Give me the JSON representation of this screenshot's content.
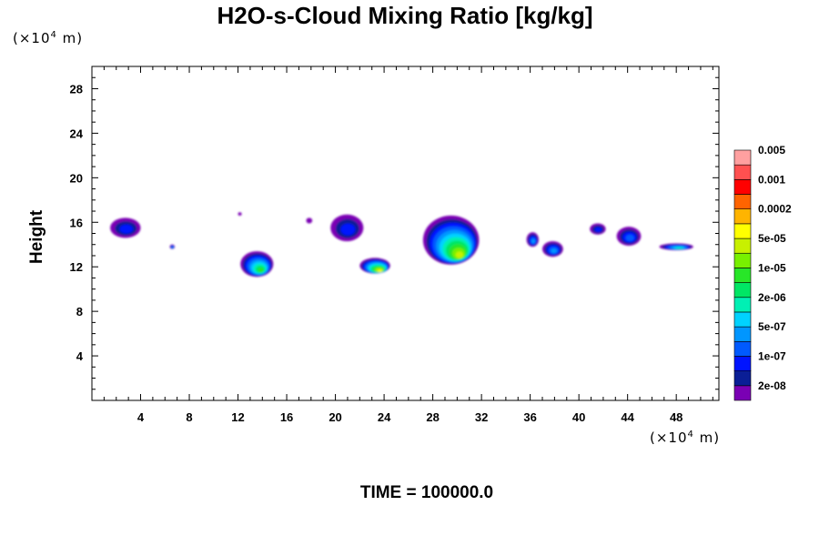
{
  "chart_data": {
    "type": "heatmap",
    "title": "H2O-s-Cloud Mixing Ratio [kg/kg]",
    "ylabel": "Height",
    "x_unit": {
      "prefix": "(×10",
      "exp": "4",
      "suffix": " m)"
    },
    "y_unit": {
      "prefix": "(×10",
      "exp": "4",
      "suffix": " m)"
    },
    "xlim": [
      0,
      51.5
    ],
    "ylim": [
      0,
      30
    ],
    "x_ticks": [
      4,
      8,
      12,
      16,
      20,
      24,
      28,
      32,
      36,
      40,
      44,
      48
    ],
    "y_ticks": [
      4,
      8,
      12,
      16,
      20,
      24,
      28
    ],
    "footer": "TIME = 100000.0",
    "colorbar": {
      "colors": [
        "#7a00b4",
        "#0a1e96",
        "#0014ff",
        "#005aff",
        "#0096ff",
        "#00d2ff",
        "#00f0b4",
        "#00e664",
        "#28e628",
        "#78f000",
        "#c8f000",
        "#ffff00",
        "#ffb400",
        "#ff6400",
        "#ff0000",
        "#ff5050",
        "#ffa0a0"
      ],
      "labels": [
        "2e-08",
        "1e-07",
        "5e-07",
        "2e-06",
        "1e-05",
        "5e-05",
        "0.0002",
        "0.001",
        "0.005"
      ]
    },
    "features": [
      {
        "x": [
          1.5,
          4.0
        ],
        "y": [
          14.6,
          16.4
        ],
        "max_level": 2
      },
      {
        "x": [
          6.4,
          6.8
        ],
        "y": [
          13.6,
          14.0
        ],
        "max_level": 4
      },
      {
        "x": [
          12.0,
          12.3
        ],
        "y": [
          16.6,
          16.9
        ],
        "max_level": 0
      },
      {
        "x": [
          12.2,
          14.9
        ],
        "y": [
          11.1,
          13.4
        ],
        "max_level": 8
      },
      {
        "x": [
          17.6,
          18.1
        ],
        "y": [
          15.9,
          16.4
        ],
        "max_level": 0
      },
      {
        "x": [
          19.6,
          22.3
        ],
        "y": [
          14.3,
          16.7
        ],
        "max_level": 2
      },
      {
        "x": [
          22.0,
          24.5
        ],
        "y": [
          11.4,
          12.8
        ],
        "max_level": 11
      },
      {
        "x": [
          27.2,
          31.8
        ],
        "y": [
          12.2,
          16.6
        ],
        "max_level": 10
      },
      {
        "x": [
          35.7,
          36.7
        ],
        "y": [
          13.8,
          15.1
        ],
        "max_level": 4
      },
      {
        "x": [
          37.0,
          38.7
        ],
        "y": [
          12.9,
          14.3
        ],
        "max_level": 4
      },
      {
        "x": [
          40.9,
          42.2
        ],
        "y": [
          14.9,
          15.9
        ],
        "max_level": 2
      },
      {
        "x": [
          43.1,
          45.1
        ],
        "y": [
          13.9,
          15.6
        ],
        "max_level": 3
      },
      {
        "x": [
          46.6,
          49.4
        ],
        "y": [
          13.5,
          14.1
        ],
        "max_level": 6
      }
    ]
  }
}
